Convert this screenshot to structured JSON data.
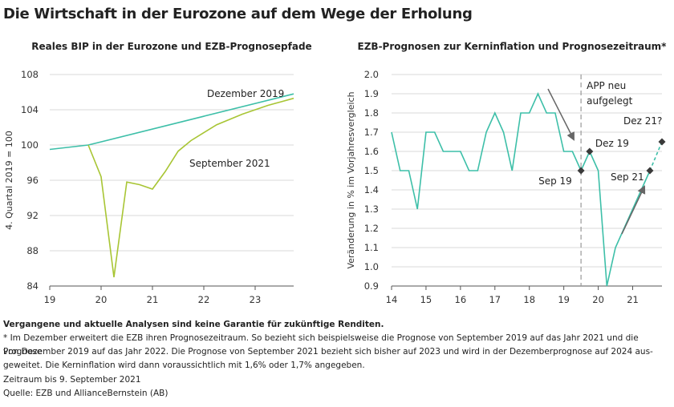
{
  "title": "Die Wirtschaft in der Eurozone auf dem Wege der Erholung",
  "colors": {
    "teal": "#3dbfa8",
    "lime": "#a8c534",
    "axis": "#555555",
    "grid": "#d8d8d8",
    "marker": "#3a3a3a",
    "arrow": "#666666"
  },
  "chart_data": [
    {
      "type": "line",
      "title": "Reales BIP in der Eurozone und EZB-Prognosepfade",
      "ylabel": "4. Quartal 2019 = 100",
      "xlabel": "",
      "ylim": [
        84,
        108
      ],
      "xlim": [
        19,
        23.75
      ],
      "yticks": [
        "84",
        "88",
        "92",
        "96",
        "100",
        "104",
        "108"
      ],
      "xticks": [
        "19",
        "20",
        "21",
        "22",
        "23"
      ],
      "series": [
        {
          "name": "Dezember 2019",
          "label": "Dezember 2019",
          "x": [
            19.0,
            19.75,
            23.75
          ],
          "y": [
            99.5,
            100.0,
            105.8
          ]
        },
        {
          "name": "September 2021",
          "label": "September 2021",
          "x": [
            19.75,
            20.0,
            20.25,
            20.5,
            20.75,
            21.0,
            21.25,
            21.5,
            21.75,
            22.0,
            22.25,
            22.5,
            22.75,
            23.0,
            23.25,
            23.5,
            23.75
          ],
          "y": [
            100.0,
            96.4,
            85.0,
            95.8,
            95.5,
            95.0,
            97.0,
            99.3,
            100.5,
            101.4,
            102.3,
            102.9,
            103.5,
            104.0,
            104.5,
            104.9,
            105.3
          ]
        }
      ]
    },
    {
      "type": "line",
      "title": "EZB-Prognosen zur Kerninflation und Prognosezeitraum*",
      "ylabel": "Veränderung in % im Vorjahresvergleich",
      "xlabel": "",
      "ylim": [
        0.9,
        2.0
      ],
      "xlim": [
        14,
        21.85
      ],
      "yticks": [
        "0.9",
        "1.0",
        "1.1",
        "1.2",
        "1.3",
        "1.4",
        "1.5",
        "1.6",
        "1.7",
        "1.8",
        "1.9",
        "2.0"
      ],
      "xticks": [
        "14",
        "15",
        "16",
        "17",
        "18",
        "19",
        "20",
        "21"
      ],
      "series": [
        {
          "name": "Kerninflation",
          "x": [
            14.0,
            14.25,
            14.5,
            14.75,
            15.0,
            15.25,
            15.5,
            15.75,
            16.0,
            16.25,
            16.5,
            16.75,
            17.0,
            17.25,
            17.5,
            17.75,
            18.0,
            18.25,
            18.5,
            18.75,
            19.0,
            19.25,
            19.5,
            19.75,
            20.0,
            20.25,
            20.5,
            20.75,
            21.0,
            21.25,
            21.5
          ],
          "y": [
            1.7,
            1.5,
            1.5,
            1.3,
            1.7,
            1.7,
            1.6,
            1.6,
            1.6,
            1.5,
            1.5,
            1.7,
            1.8,
            1.7,
            1.5,
            1.8,
            1.8,
            1.9,
            1.8,
            1.8,
            1.6,
            1.6,
            1.5,
            1.6,
            1.5,
            0.9,
            1.1,
            1.2,
            1.3,
            1.4,
            1.5
          ]
        },
        {
          "name": "Prognose",
          "dashed": true,
          "x": [
            21.5,
            21.85
          ],
          "y": [
            1.5,
            1.65
          ]
        }
      ],
      "markers": [
        {
          "label": "Sep 19",
          "x": 19.5,
          "y": 1.5
        },
        {
          "label": "Dez 19",
          "x": 19.75,
          "y": 1.6
        },
        {
          "label": "Sep 21",
          "x": 21.5,
          "y": 1.5
        },
        {
          "label": "Dez 21?",
          "x": 21.85,
          "y": 1.65
        }
      ],
      "annotation": {
        "label_line1": "APP neu",
        "label_line2": "aufgelegt",
        "x": 19.5
      }
    }
  ],
  "footer": {
    "disclaimer": "Vergangene und aktuelle Analysen sind keine Garantie für zukünftige Renditen.",
    "note_line1": "* Im Dezember erweitert die EZB ihren Prognosezeitraum. So bezieht sich beispielsweise die Prognose von September 2019 auf das Jahr 2021 und die Prognose",
    "note_line2": "von Dezember 2019 auf das Jahr 2022. Die Prognose von September 2021 bezieht sich bisher auf 2023 und wird in der Dezemberprognose auf 2024 aus-",
    "note_line3": "geweitet. Die Kerninflation wird dann voraussichtlich mit 1,6% oder 1,7% angegeben.",
    "period": "Zeitraum bis 9. September 2021",
    "source": "Quelle: EZB und AllianceBernstein (AB)"
  }
}
